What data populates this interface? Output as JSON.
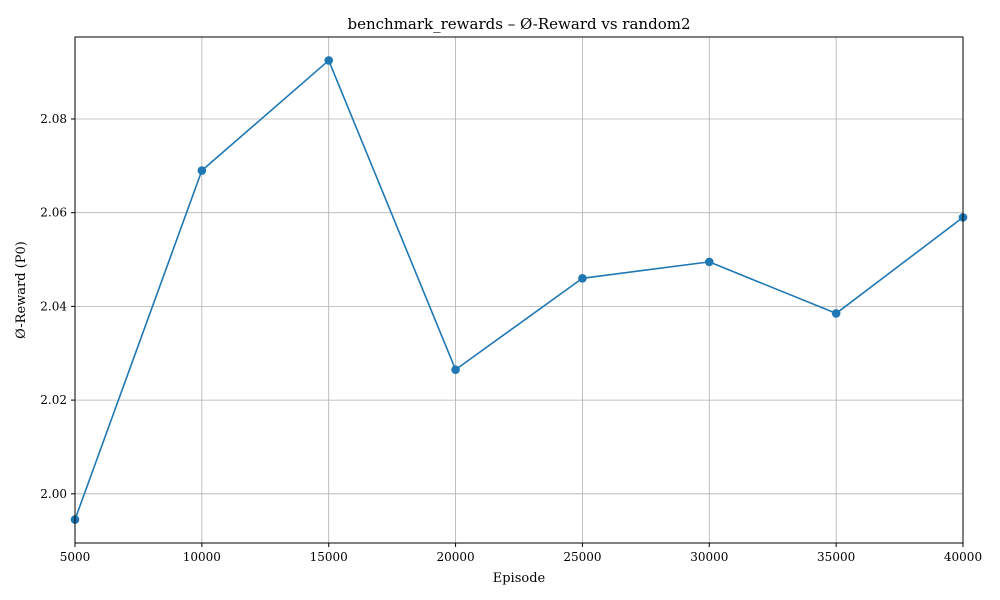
{
  "chart_data": {
    "type": "line",
    "title": "benchmark_rewards – Ø-Reward vs random2",
    "xlabel": "Episode",
    "ylabel": "Ø-Reward (P0)",
    "xlim": [
      5000,
      40000
    ],
    "ylim": [
      1.9895,
      2.0975
    ],
    "grid": true,
    "x_ticks": [
      5000,
      10000,
      15000,
      20000,
      25000,
      30000,
      35000,
      40000
    ],
    "x_tick_labels": [
      "5000",
      "10000",
      "15000",
      "20000",
      "25000",
      "30000",
      "35000",
      "40000"
    ],
    "y_ticks": [
      2.0,
      2.02,
      2.04,
      2.06,
      2.08
    ],
    "y_tick_labels": [
      "2.00",
      "2.02",
      "2.04",
      "2.06",
      "2.08"
    ],
    "series": [
      {
        "color": "#1f77b4",
        "marker": "circle",
        "x": [
          5000,
          10000,
          15000,
          20000,
          25000,
          30000,
          35000,
          40000
        ],
        "y": [
          1.9945,
          2.069,
          2.0925,
          2.0265,
          2.046,
          2.0495,
          2.0385,
          2.059
        ]
      }
    ]
  }
}
